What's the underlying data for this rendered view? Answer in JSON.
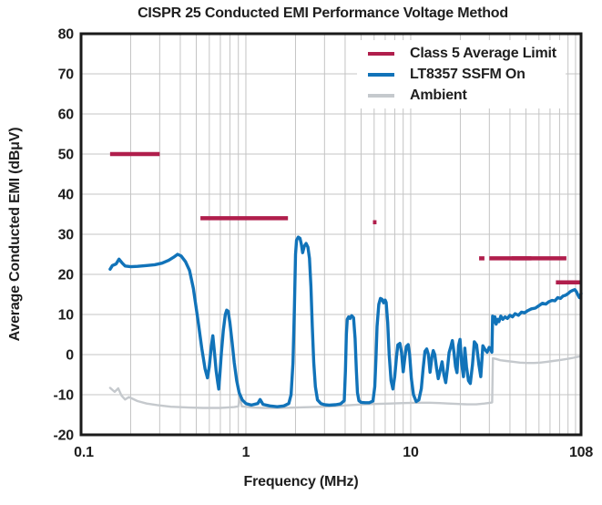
{
  "chart_data": {
    "type": "line",
    "title": "CISPR 25 Conducted EMI Performance Voltage Method",
    "xlabel": "Frequency (MHz)",
    "ylabel": "Average Conducted EMI (dBμV)",
    "x_scale": "log",
    "xlim": [
      0.1,
      108
    ],
    "ylim": [
      -20,
      80
    ],
    "x_ticks": [
      0.1,
      1,
      10,
      108
    ],
    "x_tick_labels": [
      "0.1",
      "1",
      "10",
      "108"
    ],
    "y_ticks": [
      -20,
      -10,
      0,
      10,
      20,
      30,
      40,
      50,
      60,
      70,
      80
    ],
    "y_tick_labels": [
      "-20",
      "-10",
      "0",
      "10",
      "20",
      "30",
      "40",
      "50",
      "60",
      "70",
      "80"
    ],
    "grid": true,
    "legend_position": "upper-right",
    "colors": {
      "limit": "#b01e4c",
      "ssfm_on": "#1173b9",
      "ambient": "#c5c9cd",
      "grid": "#c4c4c4",
      "frame": "#1a1a1a"
    },
    "series": [
      {
        "name": "Class 5 Average Limit",
        "color": "#b01e4c",
        "style": "segments",
        "segments": [
          {
            "f_start": 0.15,
            "f_stop": 0.3,
            "level_dbuv": 50
          },
          {
            "f_start": 0.53,
            "f_stop": 1.8,
            "level_dbuv": 34
          },
          {
            "f_start": 5.9,
            "f_stop": 6.2,
            "level_dbuv": 33
          },
          {
            "f_start": 26,
            "f_stop": 28,
            "level_dbuv": 24
          },
          {
            "f_start": 30,
            "f_stop": 54,
            "level_dbuv": 24
          },
          {
            "f_start": 41,
            "f_stop": 88,
            "level_dbuv": 24
          },
          {
            "f_start": 76,
            "f_stop": 108,
            "level_dbuv": 18
          }
        ]
      },
      {
        "name": "LT8357 SSFM On",
        "color": "#1173b9",
        "style": "line",
        "points": [
          [
            0.15,
            21.3
          ],
          [
            0.155,
            22.2
          ],
          [
            0.163,
            22.6
          ],
          [
            0.17,
            23.8
          ],
          [
            0.178,
            22.8
          ],
          [
            0.185,
            22.1
          ],
          [
            0.2,
            21.9
          ],
          [
            0.22,
            22.0
          ],
          [
            0.25,
            22.2
          ],
          [
            0.28,
            22.4
          ],
          [
            0.31,
            22.8
          ],
          [
            0.34,
            23.5
          ],
          [
            0.365,
            24.3
          ],
          [
            0.385,
            25.0
          ],
          [
            0.405,
            24.6
          ],
          [
            0.43,
            23.2
          ],
          [
            0.455,
            21.0
          ],
          [
            0.48,
            16.5
          ],
          [
            0.51,
            9.0
          ],
          [
            0.54,
            1.5
          ],
          [
            0.565,
            -3.5
          ],
          [
            0.585,
            -5.8
          ],
          [
            0.6,
            -3.0
          ],
          [
            0.617,
            2.0
          ],
          [
            0.63,
            4.7
          ],
          [
            0.645,
            0.5
          ],
          [
            0.66,
            -4.0
          ],
          [
            0.675,
            -7.0
          ],
          [
            0.685,
            -8.6
          ],
          [
            0.695,
            -5.0
          ],
          [
            0.71,
            0.5
          ],
          [
            0.73,
            6.0
          ],
          [
            0.75,
            10.0
          ],
          [
            0.765,
            11.1
          ],
          [
            0.78,
            10.8
          ],
          [
            0.8,
            8.0
          ],
          [
            0.825,
            3.0
          ],
          [
            0.85,
            -2.0
          ],
          [
            0.88,
            -6.5
          ],
          [
            0.91,
            -9.5
          ],
          [
            0.95,
            -11.3
          ],
          [
            1.0,
            -12.2
          ],
          [
            1.08,
            -12.6
          ],
          [
            1.18,
            -12.2
          ],
          [
            1.22,
            -11.2
          ],
          [
            1.27,
            -12.4
          ],
          [
            1.4,
            -12.8
          ],
          [
            1.55,
            -13.0
          ],
          [
            1.7,
            -12.8
          ],
          [
            1.82,
            -12.2
          ],
          [
            1.88,
            -10.0
          ],
          [
            1.93,
            -2.0
          ],
          [
            1.97,
            12.0
          ],
          [
            2.0,
            25.0
          ],
          [
            2.03,
            28.5
          ],
          [
            2.08,
            29.3
          ],
          [
            2.13,
            29.0
          ],
          [
            2.17,
            27.5
          ],
          [
            2.21,
            25.4
          ],
          [
            2.26,
            27.0
          ],
          [
            2.32,
            27.7
          ],
          [
            2.38,
            26.8
          ],
          [
            2.43,
            24.0
          ],
          [
            2.48,
            17.0
          ],
          [
            2.53,
            7.0
          ],
          [
            2.58,
            -2.0
          ],
          [
            2.64,
            -8.0
          ],
          [
            2.72,
            -11.3
          ],
          [
            2.85,
            -12.2
          ],
          [
            3.0,
            -12.5
          ],
          [
            3.2,
            -12.6
          ],
          [
            3.5,
            -12.5
          ],
          [
            3.75,
            -12.3
          ],
          [
            3.95,
            -11.5
          ],
          [
            4.02,
            -4.0
          ],
          [
            4.07,
            5.0
          ],
          [
            4.12,
            8.8
          ],
          [
            4.2,
            9.4
          ],
          [
            4.28,
            9.0
          ],
          [
            4.38,
            9.7
          ],
          [
            4.5,
            9.2
          ],
          [
            4.6,
            4.0
          ],
          [
            4.68,
            -4.0
          ],
          [
            4.75,
            -9.5
          ],
          [
            4.85,
            -11.5
          ],
          [
            5.0,
            -11.9
          ],
          [
            5.3,
            -12.0
          ],
          [
            5.6,
            -12.0
          ],
          [
            5.9,
            -11.6
          ],
          [
            6.05,
            -8.0
          ],
          [
            6.15,
            -1.0
          ],
          [
            6.25,
            7.0
          ],
          [
            6.4,
            12.5
          ],
          [
            6.55,
            14.0
          ],
          [
            6.7,
            13.8
          ],
          [
            6.85,
            12.9
          ],
          [
            7.0,
            13.6
          ],
          [
            7.1,
            13.0
          ],
          [
            7.25,
            8.0
          ],
          [
            7.4,
            0.0
          ],
          [
            7.6,
            -6.5
          ],
          [
            7.8,
            -8.6
          ],
          [
            8.0,
            -5.5
          ],
          [
            8.2,
            -0.5
          ],
          [
            8.35,
            2.4
          ],
          [
            8.6,
            2.8
          ],
          [
            8.8,
            0.5
          ],
          [
            9.0,
            -4.3
          ],
          [
            9.2,
            -1.0
          ],
          [
            9.4,
            2.0
          ],
          [
            9.65,
            2.5
          ],
          [
            9.85,
            0.0
          ],
          [
            10.1,
            -6.0
          ],
          [
            10.4,
            -10.0
          ],
          [
            10.8,
            -11.7
          ],
          [
            11.2,
            -11.3
          ],
          [
            11.6,
            -8.5
          ],
          [
            11.9,
            -3.5
          ],
          [
            12.2,
            0.8
          ],
          [
            12.5,
            1.4
          ],
          [
            12.8,
            0.0
          ],
          [
            13.1,
            -4.4
          ],
          [
            13.45,
            -0.5
          ],
          [
            13.7,
            1.0
          ],
          [
            14.0,
            0.0
          ],
          [
            14.35,
            -3.5
          ],
          [
            14.7,
            -6.0
          ],
          [
            15.1,
            -3.8
          ],
          [
            15.5,
            -1.8
          ],
          [
            15.9,
            -5.0
          ],
          [
            16.3,
            -7.0
          ],
          [
            16.7,
            -3.5
          ],
          [
            17.1,
            0.5
          ],
          [
            17.5,
            2.0
          ],
          [
            17.9,
            3.5
          ],
          [
            18.3,
            0.5
          ],
          [
            18.7,
            -3.0
          ],
          [
            19.1,
            -4.5
          ],
          [
            19.5,
            2.2
          ],
          [
            19.9,
            3.8
          ],
          [
            20.4,
            -2.5
          ],
          [
            20.9,
            -5.5
          ],
          [
            21.3,
            1.6
          ],
          [
            21.8,
            -3.0
          ],
          [
            22.4,
            -6.5
          ],
          [
            23.0,
            -7.2
          ],
          [
            23.7,
            -2.5
          ],
          [
            24.3,
            3.2
          ],
          [
            25.1,
            2.4
          ],
          [
            25.9,
            -2.5
          ],
          [
            26.6,
            -5.5
          ],
          [
            27.4,
            2.2
          ],
          [
            28.3,
            1.2
          ],
          [
            29.1,
            0.6
          ],
          [
            29.9,
            1.8
          ],
          [
            30.6,
            1.2
          ],
          [
            31.1,
            0.6
          ],
          [
            31.4,
            9.6
          ],
          [
            31.9,
            8.0
          ],
          [
            32.4,
            9.4
          ],
          [
            33.0,
            7.6
          ],
          [
            33.6,
            8.8
          ],
          [
            34.3,
            8.2
          ],
          [
            35.2,
            9.6
          ],
          [
            36.2,
            8.8
          ],
          [
            37.4,
            9.4
          ],
          [
            38.6,
            9.0
          ],
          [
            40.0,
            9.8
          ],
          [
            41.5,
            9.4
          ],
          [
            43.0,
            10.2
          ],
          [
            45.0,
            9.8
          ],
          [
            47.0,
            10.6
          ],
          [
            49.0,
            10.4
          ],
          [
            51.5,
            11.0
          ],
          [
            54.0,
            11.4
          ],
          [
            57.0,
            11.6
          ],
          [
            60.0,
            12.2
          ],
          [
            63.0,
            12.8
          ],
          [
            66.0,
            12.6
          ],
          [
            69.0,
            13.2
          ],
          [
            72.0,
            13.5
          ],
          [
            75.0,
            13.4
          ],
          [
            78.0,
            14.2
          ],
          [
            81.0,
            14.0
          ],
          [
            84.0,
            14.6
          ],
          [
            87.0,
            14.8
          ],
          [
            90.0,
            15.2
          ],
          [
            93.0,
            15.7
          ],
          [
            96.0,
            16.0
          ],
          [
            99.0,
            16.2
          ],
          [
            101.5,
            15.6
          ],
          [
            103.5,
            14.8
          ],
          [
            105.5,
            14.2
          ],
          [
            108,
            15.2
          ]
        ]
      },
      {
        "name": "Ambient",
        "color": "#c5c9cd",
        "style": "line",
        "points": [
          [
            0.15,
            -8.3
          ],
          [
            0.16,
            -9.3
          ],
          [
            0.168,
            -8.4
          ],
          [
            0.176,
            -10.2
          ],
          [
            0.185,
            -11.2
          ],
          [
            0.195,
            -10.6
          ],
          [
            0.205,
            -11.0
          ],
          [
            0.22,
            -11.6
          ],
          [
            0.25,
            -12.2
          ],
          [
            0.29,
            -12.6
          ],
          [
            0.35,
            -13.0
          ],
          [
            0.45,
            -13.2
          ],
          [
            0.55,
            -13.3
          ],
          [
            0.7,
            -13.3
          ],
          [
            0.85,
            -13.1
          ],
          [
            0.9,
            -12.9
          ],
          [
            0.92,
            -10.2
          ],
          [
            0.945,
            -12.9
          ],
          [
            1.1,
            -13.2
          ],
          [
            1.3,
            -13.3
          ],
          [
            1.6,
            -13.3
          ],
          [
            2.0,
            -13.2
          ],
          [
            2.5,
            -13.1
          ],
          [
            3.0,
            -13.0
          ],
          [
            3.6,
            -12.8
          ],
          [
            4.3,
            -12.6
          ],
          [
            5.2,
            -12.4
          ],
          [
            6.3,
            -12.3
          ],
          [
            7.5,
            -12.2
          ],
          [
            9.0,
            -12.1
          ],
          [
            11,
            -12.0
          ],
          [
            13,
            -12.0
          ],
          [
            15,
            -12.1
          ],
          [
            17,
            -12.2
          ],
          [
            19,
            -12.3
          ],
          [
            22,
            -12.4
          ],
          [
            25,
            -12.4
          ],
          [
            28,
            -12.2
          ],
          [
            30.5,
            -12.0
          ],
          [
            31.2,
            -11.9
          ],
          [
            31.5,
            -0.9
          ],
          [
            33,
            -1.1
          ],
          [
            35,
            -1.4
          ],
          [
            38,
            -1.6
          ],
          [
            42,
            -1.8
          ],
          [
            46,
            -2.0
          ],
          [
            51,
            -2.1
          ],
          [
            56,
            -2.1
          ],
          [
            61,
            -2.0
          ],
          [
            67,
            -1.8
          ],
          [
            73,
            -1.6
          ],
          [
            79,
            -1.4
          ],
          [
            85,
            -1.2
          ],
          [
            91,
            -1.0
          ],
          [
            97,
            -0.8
          ],
          [
            102,
            -0.6
          ],
          [
            108,
            -0.4
          ]
        ]
      }
    ]
  }
}
